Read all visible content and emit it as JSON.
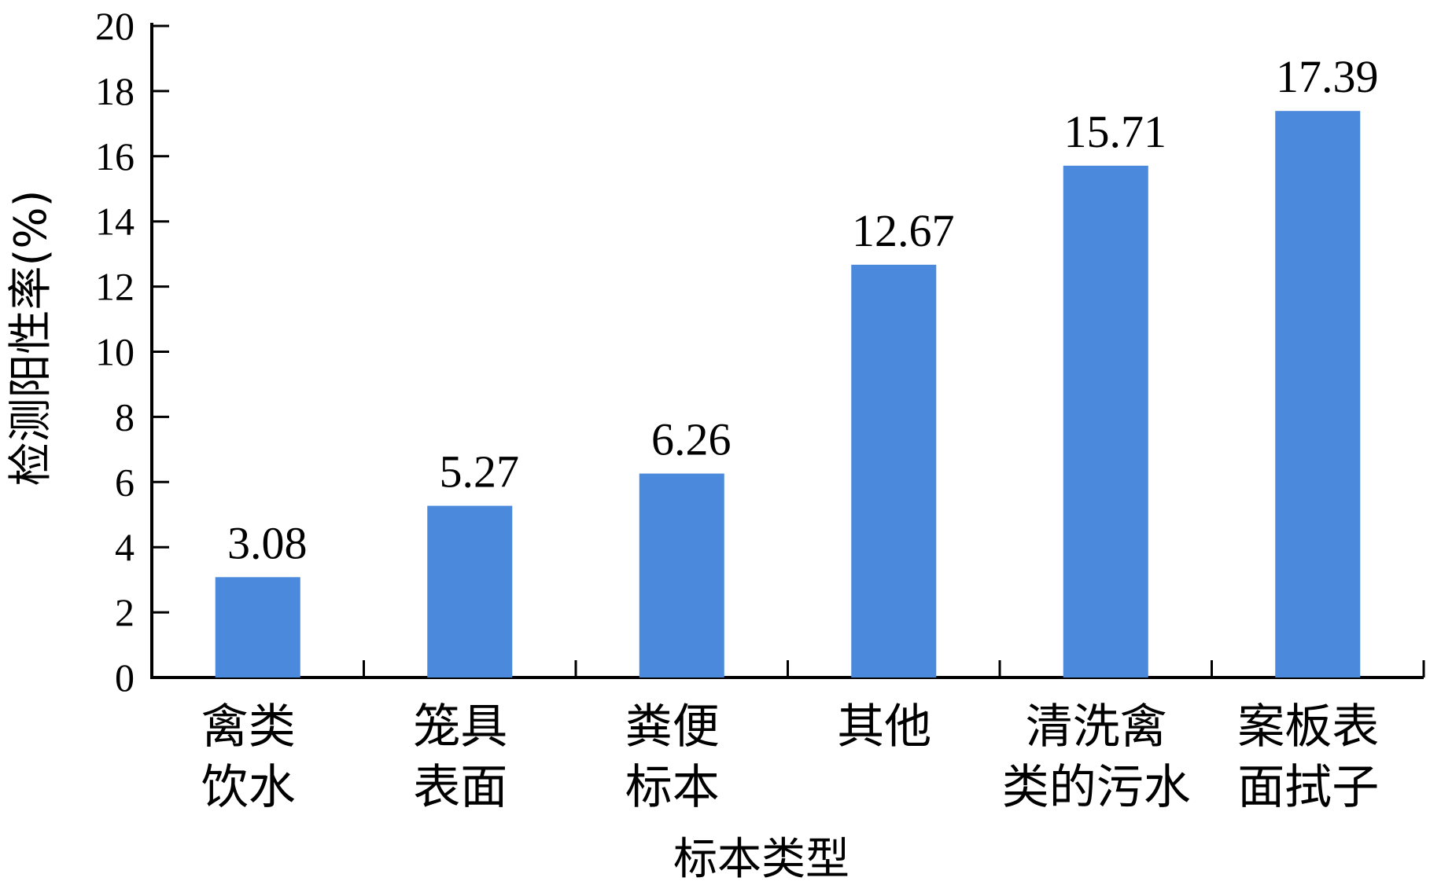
{
  "chart_data": {
    "type": "bar",
    "categories": [
      [
        "禽类",
        "饮水"
      ],
      [
        "笼具",
        "表面"
      ],
      [
        "粪便",
        "标本"
      ],
      [
        "其他"
      ],
      [
        "清洗禽",
        "类的污水"
      ],
      [
        "案板表",
        "面拭子"
      ]
    ],
    "values": [
      3.08,
      5.27,
      6.26,
      12.67,
      15.71,
      17.39
    ],
    "data_labels": [
      "3.08",
      "5.27",
      "6.26",
      "12.67",
      "15.71",
      "17.39"
    ],
    "xlabel": "标本类型",
    "ylabel": "检测阳性率(%)",
    "ylim": [
      0,
      20
    ],
    "yticks": [
      0,
      2,
      4,
      6,
      8,
      10,
      12,
      14,
      16,
      18,
      20
    ],
    "grid": false,
    "bar_color": "#4a89dc"
  }
}
